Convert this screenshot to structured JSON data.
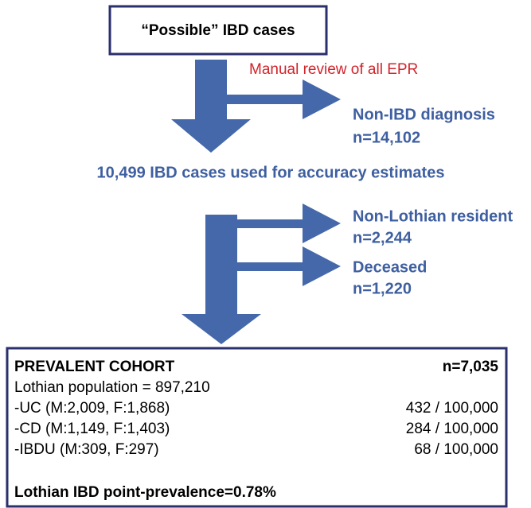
{
  "start_box": {
    "label": "“Possible” IBD cases"
  },
  "review_note": "Manual review of all EPR",
  "exclusion_1": {
    "label": "Non-IBD diagnosis",
    "count": "n=14,102"
  },
  "intermediate": "10,499 IBD cases used for accuracy estimates",
  "exclusion_2": {
    "label": "Non-Lothian resident",
    "count": "n=2,244"
  },
  "exclusion_3": {
    "label": "Deceased",
    "count": "n=1,220"
  },
  "cohort": {
    "title": "PREVALENT COHORT",
    "count": "n=7,035",
    "population": "Lothian population = 897,210",
    "rows": [
      [
        "-UC (M:2,009, F:1,868)",
        "432 / 100,000"
      ],
      [
        "-CD (M:1,149, F:1,403)",
        "284 / 100,000"
      ],
      [
        "-IBDU (M:309, F:297)",
        "68 / 100,000"
      ]
    ],
    "footer": "Lothian IBD point-prevalence=0.78%"
  }
}
